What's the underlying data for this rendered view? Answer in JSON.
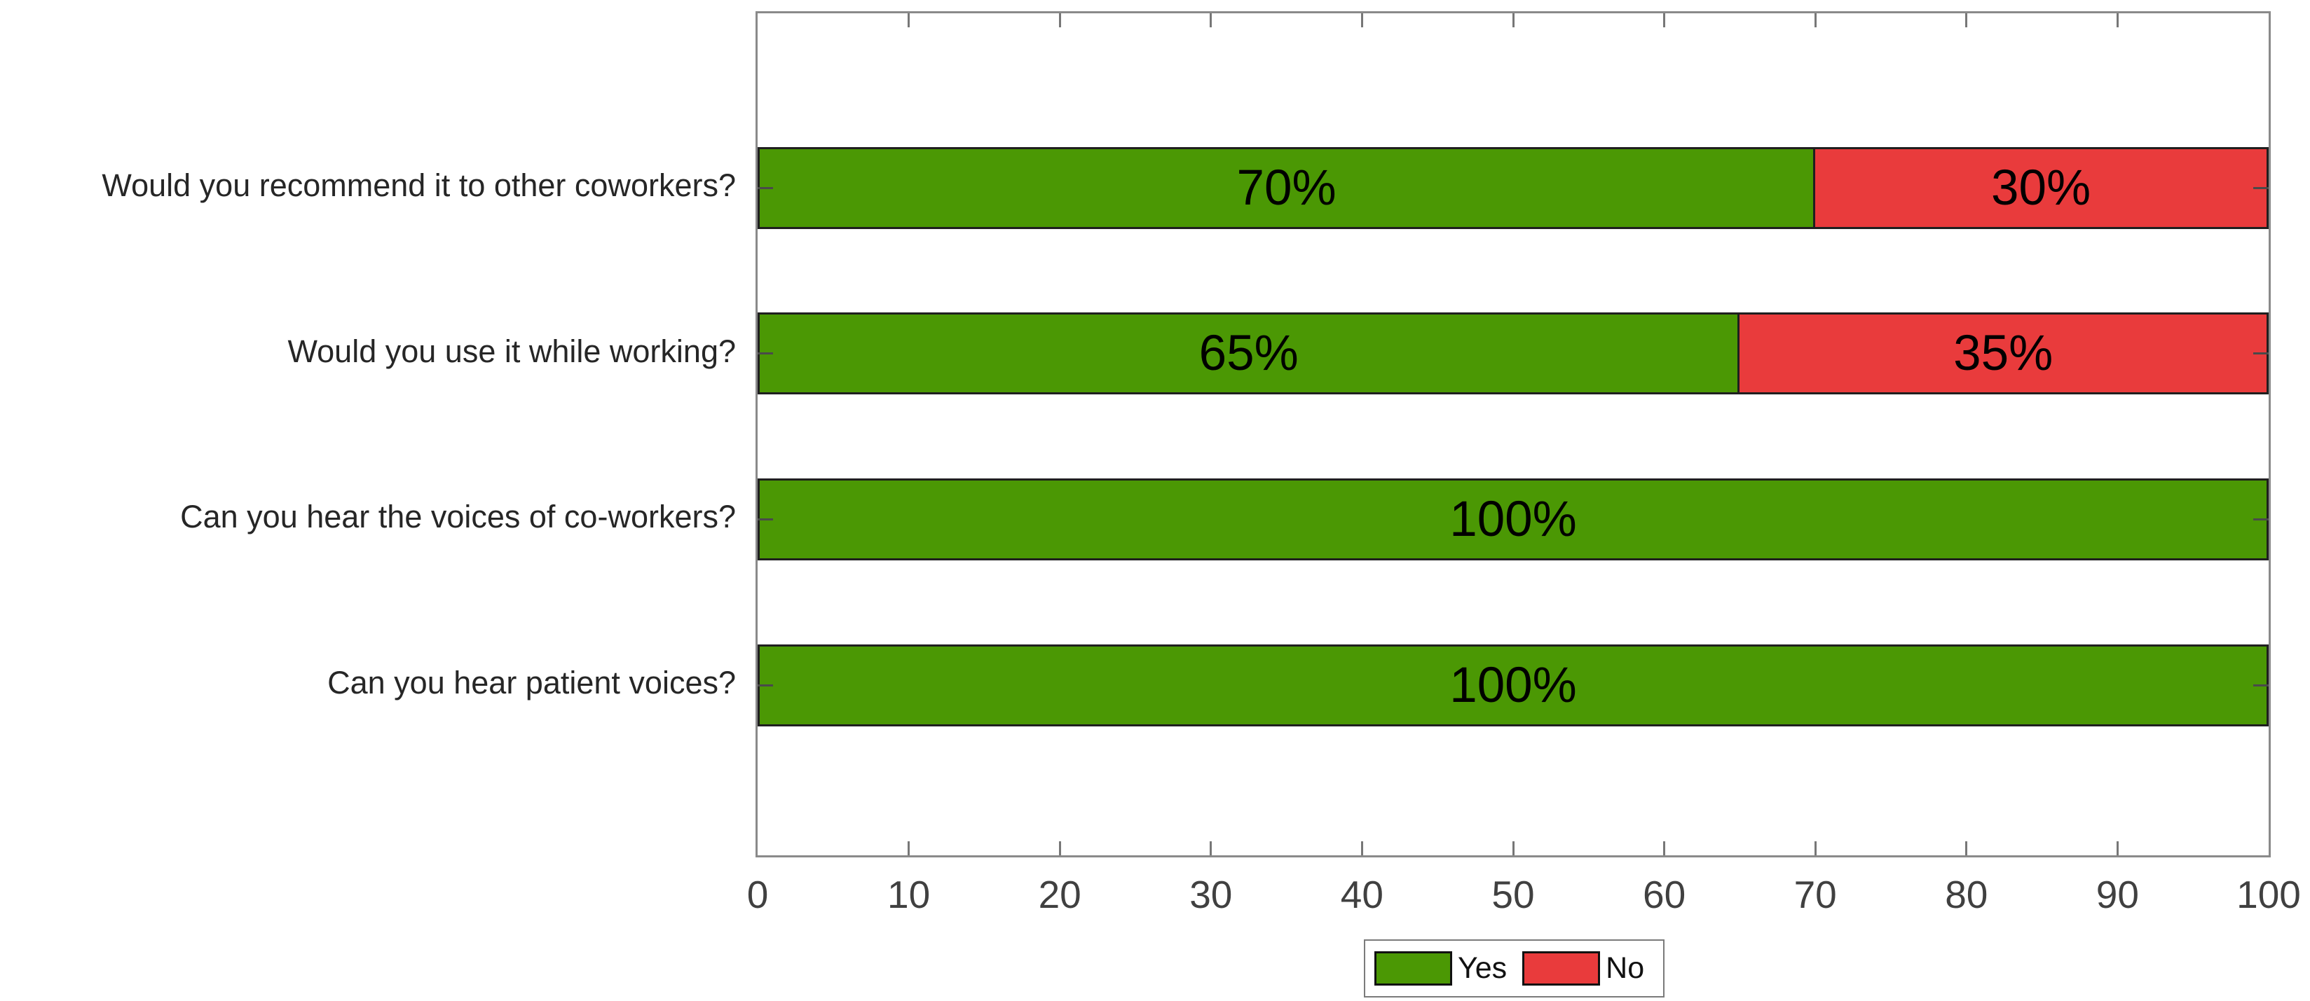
{
  "chart_data": {
    "type": "bar",
    "orientation": "horizontal",
    "stacked": true,
    "title": "",
    "xlabel": "",
    "ylabel": "",
    "xlim": [
      0,
      100
    ],
    "x_ticks": [
      "0",
      "10",
      "20",
      "30",
      "40",
      "50",
      "60",
      "70",
      "80",
      "90",
      "100"
    ],
    "grid": false,
    "categories": [
      "Would you recommend it to other coworkers?",
      "Would you use it while working?",
      "Can you hear the voices of co-workers?",
      "Can you hear patient voices?"
    ],
    "series": [
      {
        "name": "Yes",
        "color": "#4b9804",
        "values": [
          70,
          65,
          100,
          100
        ]
      },
      {
        "name": "No",
        "color": "#e93b3c",
        "values": [
          30,
          35,
          0,
          0
        ]
      }
    ],
    "bar_labels": [
      [
        "70%",
        "30%"
      ],
      [
        "65%",
        "35%"
      ],
      [
        "100%",
        ""
      ],
      [
        "100%",
        ""
      ]
    ],
    "legend": {
      "position": "below-center",
      "entries": [
        {
          "label": "Yes",
          "color": "#4b9804"
        },
        {
          "label": "No",
          "color": "#e93b3c"
        }
      ]
    }
  },
  "colors": {
    "yes_green": "#4b9804",
    "no_red": "#e93b3c",
    "axis_box": "#8a8a8a",
    "tick_label": "#404040",
    "background": "#ffffff"
  }
}
